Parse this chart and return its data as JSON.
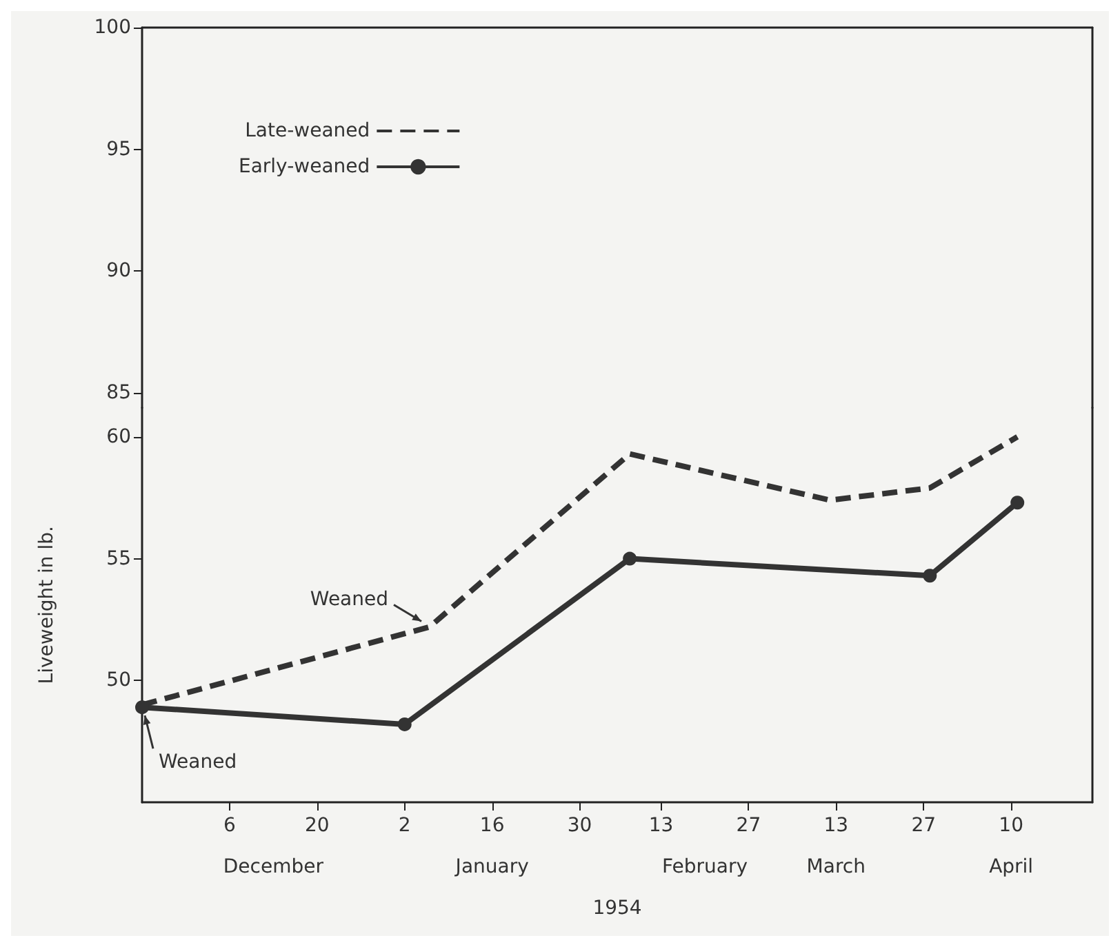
{
  "chart_data": [
    {
      "type": "line",
      "xlim": [
        "1953-11-22",
        "1954-04-23"
      ],
      "ylim": [
        84.4,
        100
      ],
      "yticks": [
        85,
        90,
        95,
        100
      ],
      "tick_labels": "y"
    },
    {
      "type": "line",
      "xlabel": "1954",
      "ylabel": "Liveweight in lb.",
      "xlim": [
        "1953-11-22",
        "1954-04-23"
      ],
      "xticks": [
        {
          "value": "1953-12-06",
          "label": "6"
        },
        {
          "value": "1953-12-20",
          "label": "20"
        },
        {
          "value": "1954-01-03",
          "label": "2"
        },
        {
          "value": "1954-01-17",
          "label": "16"
        },
        {
          "value": "1954-01-31",
          "label": "30"
        },
        {
          "value": "1954-02-13",
          "label": "13"
        },
        {
          "value": "1954-02-27",
          "label": "27"
        },
        {
          "value": "1954-03-13",
          "label": "13"
        },
        {
          "value": "1954-03-27",
          "label": "27"
        },
        {
          "value": "1954-04-10",
          "label": "10"
        }
      ],
      "x2lim": [
        "1953-11-22",
        "1954-04-23"
      ],
      "x2ticks": [
        {
          "value": "1953-12-13",
          "label": "December"
        },
        {
          "value": "1954-01-17",
          "label": "January"
        },
        {
          "value": "1954-02-20",
          "label": "February"
        },
        {
          "value": "1954-03-13",
          "label": "March"
        },
        {
          "value": "1954-04-10",
          "label": "April"
        }
      ],
      "ylim": [
        45,
        61.2
      ],
      "yticks": [
        50,
        55,
        60
      ],
      "series": [
        {
          "name": "Late-weaned",
          "color": "#333333",
          "line_style": "dashed",
          "marker": "none",
          "x": [
            "1953-11-22",
            "1954-01-07",
            "1954-02-08",
            "1954-03-12",
            "1954-03-28",
            "1954-04-11"
          ],
          "values": [
            49.0,
            52.2,
            59.3,
            57.4,
            57.9,
            60.0
          ]
        },
        {
          "name": "Early-weaned",
          "color": "#333333",
          "line_style": "solid",
          "marker": "circle",
          "x": [
            "1953-11-22",
            "1954-01-03",
            "1954-02-08",
            "1954-03-28",
            "1954-04-11"
          ],
          "values": [
            48.9,
            48.2,
            55.0,
            54.3,
            57.3
          ]
        }
      ],
      "annotations": [
        {
          "text": "Weaned",
          "x": "1954-01-07",
          "y": 52.2
        },
        {
          "text": "Weaned",
          "x": "1953-11-22",
          "y": 48.9
        }
      ],
      "legend": "top left"
    }
  ]
}
